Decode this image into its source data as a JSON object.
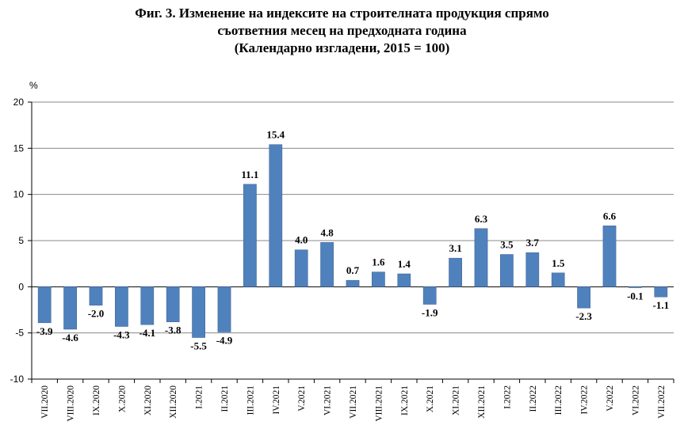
{
  "chart_data": {
    "type": "bar",
    "title": [
      "Фиг. 3. Изменение на индексите на строителната продукция спрямо",
      "съответния месец на предходната година",
      "(Календарно изгладени, 2015 = 100)"
    ],
    "ylabel": "%",
    "xlabel": "",
    "ylim": [
      -10,
      20
    ],
    "yticks": [
      "20",
      "15",
      "10",
      "5",
      "0",
      "-5",
      "-10"
    ],
    "grid": true,
    "legend": "none",
    "bar_color": "#4f81bd",
    "categories": [
      "VII.2020",
      "VIII.2020",
      "IX.2020",
      "X.2020",
      "XI.2020",
      "XII.2020",
      "I.2021",
      "II.2021",
      "III.2021",
      "IV.2021",
      "V.2021",
      "VI.2021",
      "VII.2021",
      "VIII.2021",
      "IX.2021",
      "X.2021",
      "XI.2021",
      "XII.2021",
      "I.2022",
      "II.2022",
      "III.2022",
      "IV.2022",
      "V.2022",
      "VI.2022",
      "VII.2022"
    ],
    "values": [
      -3.9,
      -4.6,
      -2.0,
      -4.3,
      -4.1,
      -3.8,
      -5.5,
      -4.9,
      11.1,
      15.4,
      4.0,
      4.8,
      0.7,
      1.6,
      1.4,
      -1.9,
      3.1,
      6.3,
      3.5,
      3.7,
      1.5,
      -2.3,
      6.6,
      -0.1,
      -1.1
    ],
    "labels": [
      "-3.9",
      "-4.6",
      "-2.0",
      "-4.3",
      "-4.1",
      "-3.8",
      "-5.5",
      "-4.9",
      "11.1",
      "15.4",
      "4.0",
      "4.8",
      "0.7",
      "1.6",
      "1.4",
      "-1.9",
      "3.1",
      "6.3",
      "3.5",
      "3.7",
      "1.5",
      "-2.3",
      "6.6",
      "-0.1",
      "-1.1"
    ]
  }
}
